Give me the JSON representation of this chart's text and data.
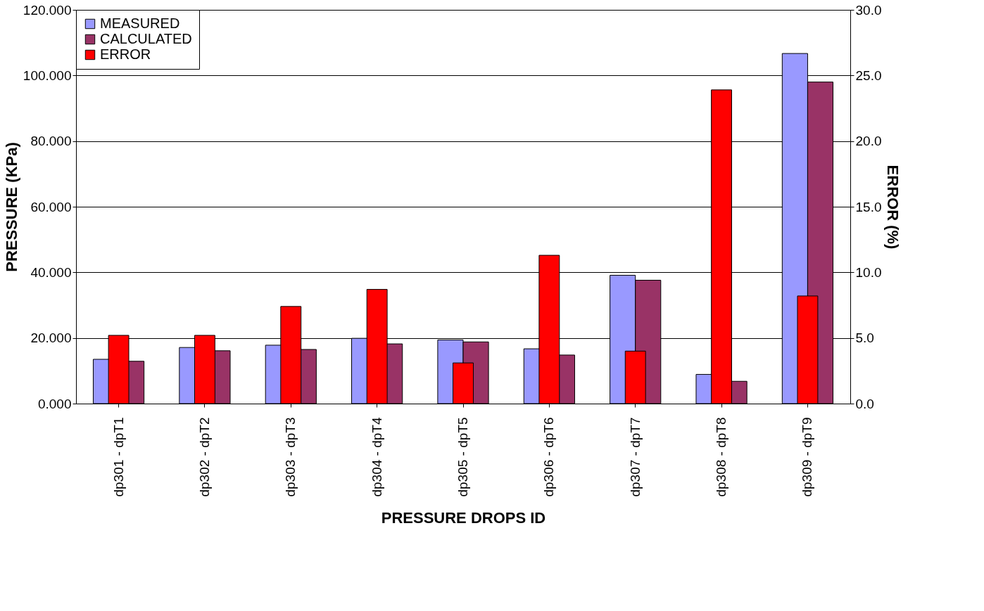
{
  "chart_data": {
    "type": "bar",
    "xlabel": "PRESSURE DROPS ID",
    "ylabel": "PRESSURE (KPa)",
    "y2label": "ERROR (%)",
    "categories": [
      "dp301 - dpT1",
      "dp302 - dpT2",
      "dp303 - dpT3",
      "dp304 - dpT4",
      "dp305 - dpT5",
      "dp306 - dpT6",
      "dp307 - dpT7",
      "dp308 - dpT8",
      "dp309 - dpT9"
    ],
    "series": [
      {
        "name": "MEASURED",
        "color": "#9999ff",
        "values": [
          13.5,
          17.1,
          17.8,
          19.9,
          19.4,
          16.7,
          39.1,
          8.9,
          106.7
        ]
      },
      {
        "name": "CALCULATED",
        "color": "#993366",
        "values": [
          12.9,
          16.1,
          16.5,
          18.2,
          18.8,
          14.8,
          37.6,
          6.8,
          98.0
        ]
      },
      {
        "name": "ERROR",
        "color": "#ff0000",
        "axis": "y2",
        "values": [
          5.2,
          5.2,
          7.4,
          8.7,
          3.1,
          11.3,
          4.0,
          23.9,
          8.2
        ]
      }
    ],
    "ylim": [
      0,
      120
    ],
    "yticks": [
      {
        "value": 0,
        "label": "0.000"
      },
      {
        "value": 20,
        "label": "20.000"
      },
      {
        "value": 40,
        "label": "40.000"
      },
      {
        "value": 60,
        "label": "60.000"
      },
      {
        "value": 80,
        "label": "80.000"
      },
      {
        "value": 100,
        "label": "100.000"
      },
      {
        "value": 120,
        "label": "120.000"
      }
    ],
    "y2lim": [
      0,
      30
    ],
    "y2ticks": [
      {
        "value": 0,
        "label": "0.0"
      },
      {
        "value": 5,
        "label": "5.0"
      },
      {
        "value": 10,
        "label": "10.0"
      },
      {
        "value": 15,
        "label": "15.0"
      },
      {
        "value": 20,
        "label": "20.0"
      },
      {
        "value": 25,
        "label": "25.0"
      },
      {
        "value": 30,
        "label": "30.0"
      }
    ],
    "grid": "y",
    "legend": "top left"
  }
}
